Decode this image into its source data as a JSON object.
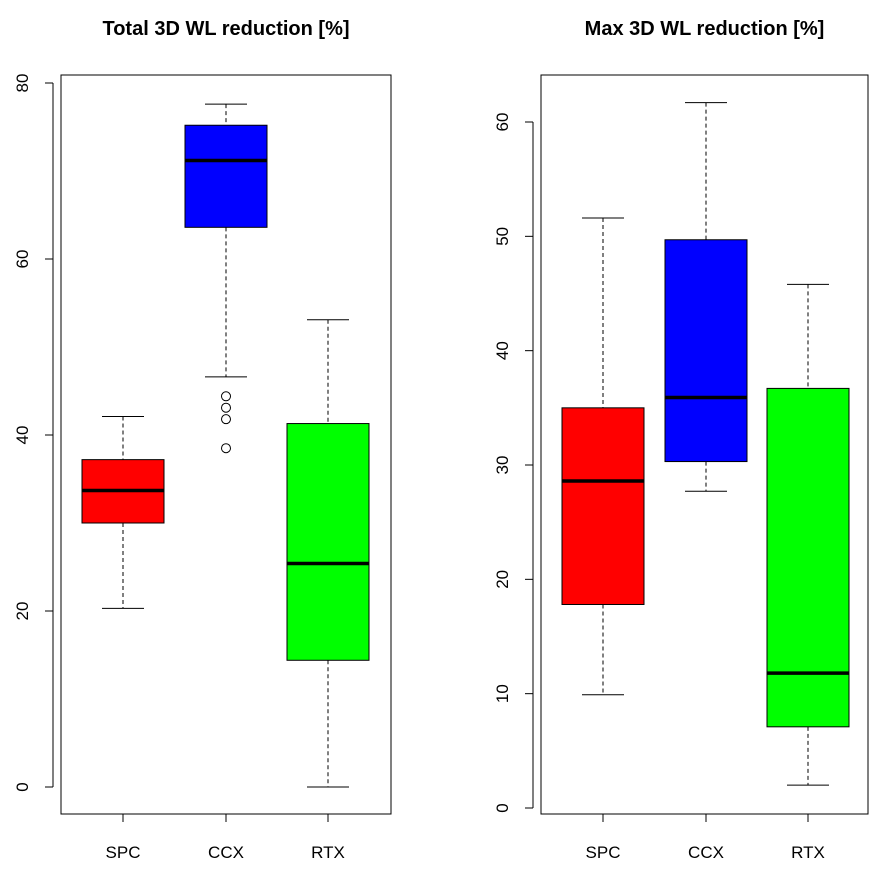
{
  "chart_data": [
    {
      "type": "boxplot",
      "title": "Total 3D WL reduction [%]",
      "xlabel": "",
      "ylabel": "",
      "ylim": [
        0,
        80
      ],
      "yticks": [
        0,
        20,
        40,
        60,
        80
      ],
      "categories": [
        "SPC",
        "CCX",
        "RTX"
      ],
      "boxes": [
        {
          "name": "SPC",
          "color": "#ff0000",
          "whisker_low": 20.3,
          "q1": 30.0,
          "median": 33.7,
          "q3": 37.2,
          "whisker_high": 42.1,
          "outliers": []
        },
        {
          "name": "CCX",
          "color": "#0000ff",
          "whisker_low": 46.6,
          "q1": 63.6,
          "median": 71.2,
          "q3": 75.2,
          "whisker_high": 77.6,
          "outliers": [
            44.4,
            43.1,
            41.8,
            38.5
          ]
        },
        {
          "name": "RTX",
          "color": "#00ff00",
          "whisker_low": 0.0,
          "q1": 14.4,
          "median": 25.4,
          "q3": 41.3,
          "whisker_high": 53.1,
          "outliers": []
        }
      ]
    },
    {
      "type": "boxplot",
      "title": "Max 3D WL reduction [%]",
      "xlabel": "",
      "ylabel": "",
      "ylim": [
        0,
        62
      ],
      "yticks": [
        0,
        10,
        20,
        30,
        40,
        50,
        60
      ],
      "categories": [
        "SPC",
        "CCX",
        "RTX"
      ],
      "boxes": [
        {
          "name": "SPC",
          "color": "#ff0000",
          "whisker_low": 9.9,
          "q1": 17.8,
          "median": 28.6,
          "q3": 35.0,
          "whisker_high": 51.6,
          "outliers": []
        },
        {
          "name": "CCX",
          "color": "#0000ff",
          "whisker_low": 27.7,
          "q1": 30.3,
          "median": 35.9,
          "q3": 49.7,
          "whisker_high": 61.7,
          "outliers": []
        },
        {
          "name": "RTX",
          "color": "#00ff00",
          "whisker_low": 2.0,
          "q1": 7.1,
          "median": 11.8,
          "q3": 36.7,
          "whisker_high": 45.8,
          "outliers": []
        }
      ]
    }
  ]
}
